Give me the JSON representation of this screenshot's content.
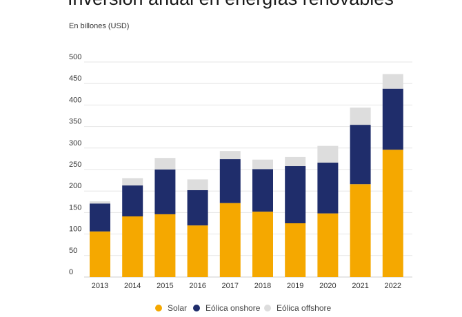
{
  "chart_data": {
    "type": "bar",
    "stacked": true,
    "title": "Inversión anual en energías renovables",
    "subtitle": "En billones (USD)",
    "categories": [
      "2013",
      "2014",
      "2015",
      "2016",
      "2017",
      "2018",
      "2019",
      "2020",
      "2021",
      "2022"
    ],
    "series": [
      {
        "name": "Solar",
        "color": "#f5a800",
        "values": [
          106,
          141,
          146,
          120,
          172,
          152,
          125,
          148,
          216,
          296
        ]
      },
      {
        "name": "Eólica onshore",
        "color": "#1f2d6b",
        "values": [
          65,
          72,
          104,
          82,
          102,
          99,
          133,
          118,
          138,
          142
        ]
      },
      {
        "name": "Eólica offshore",
        "color": "#dddddd",
        "values": [
          5,
          17,
          27,
          25,
          19,
          22,
          21,
          39,
          40,
          34
        ]
      }
    ],
    "y_ticks": [
      0,
      50,
      100,
      150,
      200,
      250,
      300,
      350,
      400,
      450,
      500
    ],
    "ylim": [
      0,
      500
    ],
    "grid": true,
    "legend": "bottom-center"
  }
}
